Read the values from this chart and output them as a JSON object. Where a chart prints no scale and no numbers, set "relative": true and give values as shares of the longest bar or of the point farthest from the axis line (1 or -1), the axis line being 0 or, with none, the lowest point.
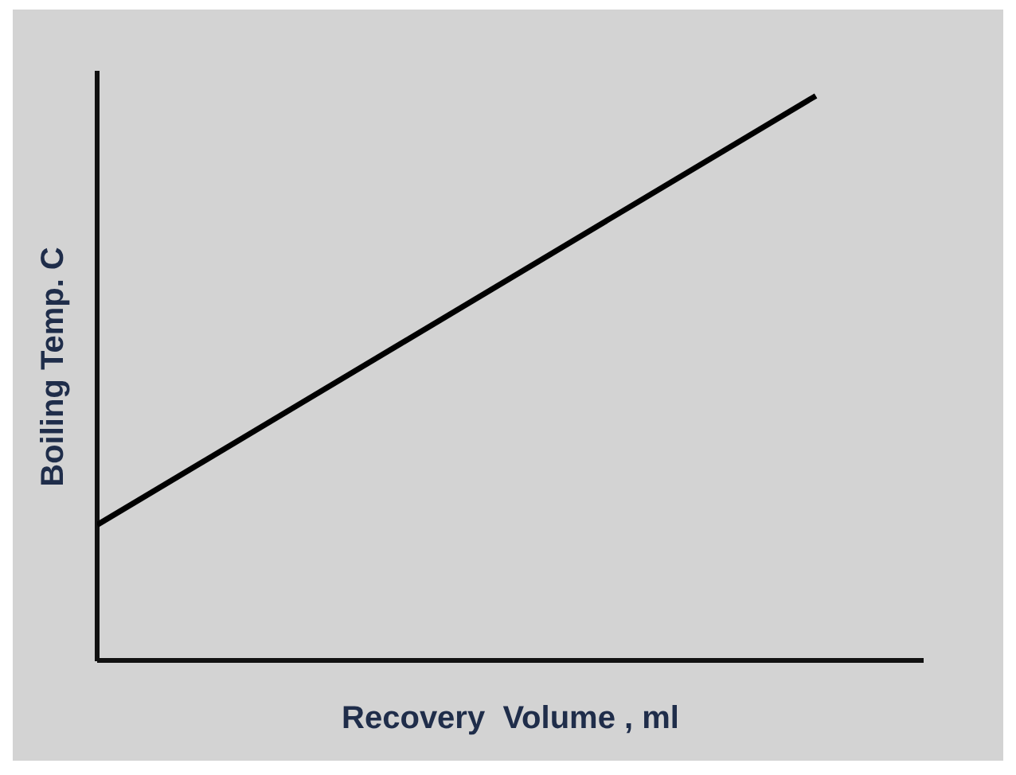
{
  "chart_data": {
    "type": "line",
    "xlabel": "Recovery  Volume , ml",
    "ylabel": "Boiling Temp. C",
    "categories": [
      null,
      null
    ],
    "relative": true,
    "series": [
      {
        "color": "#000000",
        "values": [
          0.24,
          1
        ]
      }
    ],
    "ref_lines": [
      {
        "axis": "y",
        "value": 0,
        "color": "#111111"
      }
    ],
    "legend": false,
    "grid": false,
    "marker": "none",
    "line_style": "solid",
    "tick_labels": false
  }
}
